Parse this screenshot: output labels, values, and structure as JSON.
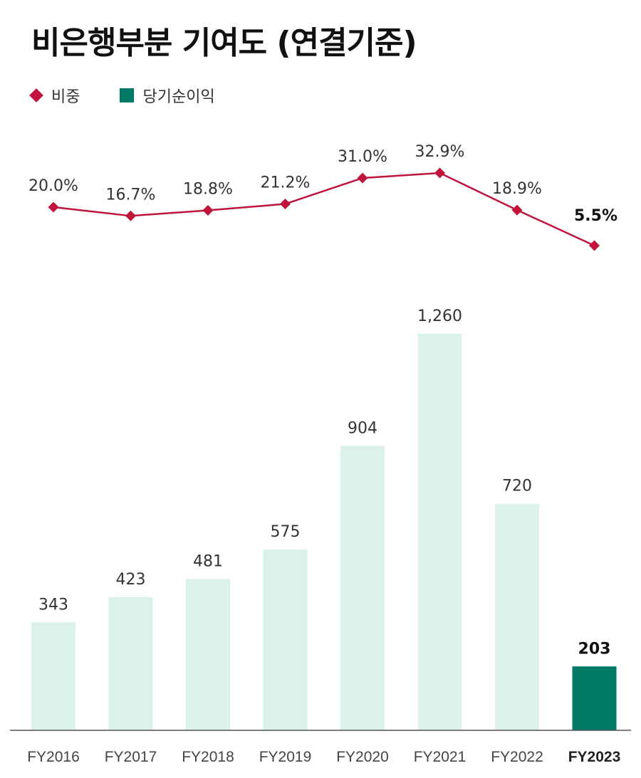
{
  "chart_data": {
    "type": "bar",
    "title": "비은행부분 기여도 (연결기준)",
    "categories": [
      "FY2016",
      "FY2017",
      "FY2018",
      "FY2019",
      "FY2020",
      "FY2021",
      "FY2022",
      "FY2023"
    ],
    "series": [
      {
        "name": "비중",
        "type": "line",
        "values": [
          20.0,
          16.7,
          18.8,
          21.2,
          31.0,
          32.9,
          18.9,
          5.5
        ],
        "labels": [
          "20.0%",
          "16.7%",
          "18.8%",
          "21.2%",
          "31.0%",
          "32.9%",
          "18.9%",
          "5.5%"
        ],
        "color": "#C0143C"
      },
      {
        "name": "당기순이익",
        "type": "bar",
        "values": [
          343,
          423,
          481,
          575,
          904,
          1260,
          720,
          203
        ],
        "labels": [
          "343",
          "423",
          "481",
          "575",
          "904",
          "1,260",
          "720",
          "203"
        ],
        "color": "#dcf0ec",
        "highlight_color": "#007A66"
      }
    ],
    "highlight_category": "FY2023",
    "legend_position": "top-left",
    "grid": false
  },
  "legend": {
    "line_label": "비중",
    "bar_label": "당기순이익",
    "line_color": "#C0143C",
    "bar_color": "#007A66"
  }
}
